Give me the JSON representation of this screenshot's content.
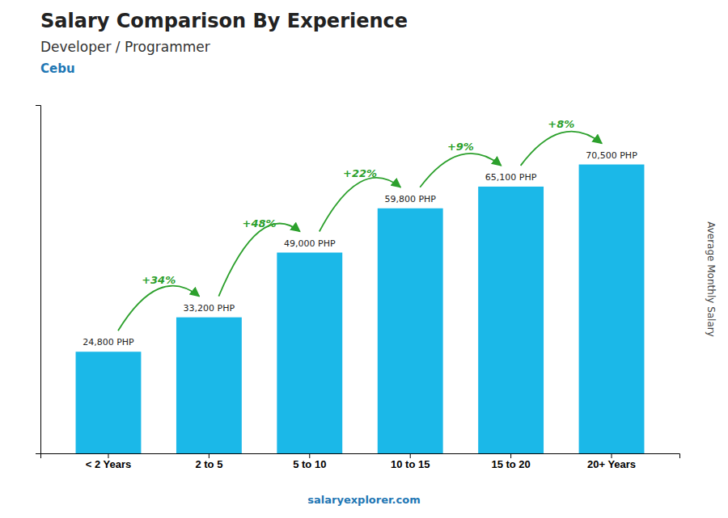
{
  "chart_data": {
    "type": "bar",
    "title": "Salary Comparison By Experience",
    "subtitle": [
      "Developer / Programmer",
      "Cebu"
    ],
    "y_label": "Average Monthly Salary",
    "footer": "salaryexplorer.com",
    "categories": [
      "< 2 Years",
      "2 to 5",
      "5 to 10",
      "10 to 15",
      "15 to 20",
      "20+ Years"
    ],
    "values": [
      24800,
      33200,
      49000,
      59800,
      65100,
      70500
    ],
    "value_labels": [
      "24,800 PHP",
      "33,200 PHP",
      "49,000 PHP",
      "59,800 PHP",
      "65,100 PHP",
      "70,500 PHP"
    ],
    "data_labels": true,
    "annotations": [
      "+34%",
      "+48%",
      "+22%",
      "+9%",
      "+8%"
    ],
    "color": "#1BB8E8",
    "ylim": [
      0,
      85000
    ],
    "tick_labels": "x",
    "grid": false
  }
}
